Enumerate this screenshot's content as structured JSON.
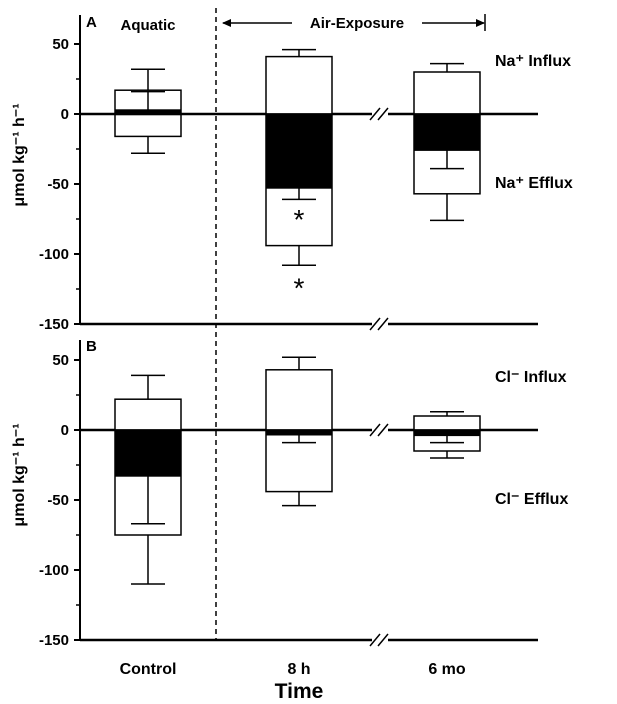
{
  "chart_data": {
    "type": "bar",
    "x_title": "Time",
    "categories": [
      "Control",
      "8 h",
      "6 mo"
    ],
    "regions": {
      "left": "Aquatic",
      "right": "Air-Exposure"
    },
    "axis_break": "between 8 h and 6 mo",
    "panels": [
      {
        "letter": "A",
        "ylabel": "μmol kg⁻¹ h⁻¹",
        "ylim": [
          -150,
          55
        ],
        "yticks": [
          50,
          0,
          -50,
          -100,
          -150
        ],
        "influx_label": "Na⁺ Influx",
        "efflux_label": "Na⁺ Efflux",
        "influx": [
          17,
          41,
          30
        ],
        "influx_err": [
          15,
          5,
          6
        ],
        "efflux": [
          -16,
          -94,
          -57
        ],
        "efflux_err": [
          12,
          14,
          19
        ],
        "net": [
          3,
          -53,
          -26
        ],
        "net_err": [
          13,
          8,
          13
        ],
        "significance": [
          {
            "category": "8 h",
            "value": -72,
            "label": "*"
          },
          {
            "category": "8 h",
            "value": -121,
            "label": "*"
          }
        ]
      },
      {
        "letter": "B",
        "ylabel": "μmol kg⁻¹ h⁻¹",
        "ylim": [
          -150,
          55
        ],
        "yticks": [
          50,
          0,
          -50,
          -100,
          -150
        ],
        "influx_label": "Cl⁻ Influx",
        "efflux_label": "Cl⁻ Efflux",
        "influx": [
          22,
          43,
          10
        ],
        "influx_err": [
          17,
          9,
          3
        ],
        "efflux": [
          -75,
          -44,
          -15
        ],
        "efflux_err": [
          35,
          10,
          5
        ],
        "net": [
          -33,
          -3,
          -4
        ],
        "net_err": [
          34,
          6,
          5
        ],
        "significance": []
      }
    ]
  }
}
